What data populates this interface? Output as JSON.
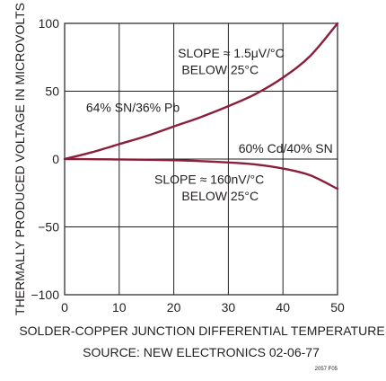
{
  "chart_data": {
    "type": "line",
    "title": "",
    "xlabel": "SOLDER-COPPER JUNCTION DIFFERENTIAL TEMPERATURE",
    "ylabel": "THERMALLY PRODUCED VOLTAGE IN MICROVOLTS",
    "source_note": "SOURCE: NEW ELECTRONICS 02-06-77",
    "figure_id": "2057 F05",
    "xlim": [
      0,
      50
    ],
    "ylim": [
      -100,
      100
    ],
    "x_ticks": [
      0,
      10,
      20,
      30,
      40,
      50
    ],
    "y_ticks": [
      100,
      50,
      0,
      -50,
      -100
    ],
    "x_tick_labels": [
      "0",
      "10",
      "20",
      "30",
      "40",
      "50"
    ],
    "y_tick_labels": [
      "100",
      "50",
      "0",
      "−50",
      "−100"
    ],
    "grid": true,
    "series": [
      {
        "name": "64% SN/36% Pb",
        "color": "#8b1e3a",
        "x": [
          0,
          5,
          10,
          15,
          20,
          25,
          30,
          35,
          40,
          45,
          50
        ],
        "y": [
          0,
          5,
          11,
          17,
          24,
          31,
          39,
          48,
          60,
          76,
          100
        ]
      },
      {
        "name": "60% Cd/40% SN",
        "color": "#8b1e3a",
        "x": [
          0,
          5,
          10,
          15,
          20,
          25,
          30,
          35,
          40,
          45,
          50
        ],
        "y": [
          0,
          -0.1,
          -0.3,
          -0.5,
          -0.9,
          -1.5,
          -2.5,
          -4,
          -7,
          -12,
          -22
        ]
      }
    ],
    "annotations": [
      {
        "id": "slope1_l1",
        "text": "SLOPE ≈ 1.5μV/°C",
        "x": 30.5,
        "y": 78
      },
      {
        "id": "slope1_l2",
        "text": "BELOW 25°C",
        "x": 28.5,
        "y": 66
      },
      {
        "id": "slope2_l1",
        "text": "SLOPE ≈ 160nV/°C",
        "x": 26.5,
        "y": -15
      },
      {
        "id": "slope2_l2",
        "text": "BELOW 25°C",
        "x": 28.5,
        "y": -27
      }
    ]
  }
}
